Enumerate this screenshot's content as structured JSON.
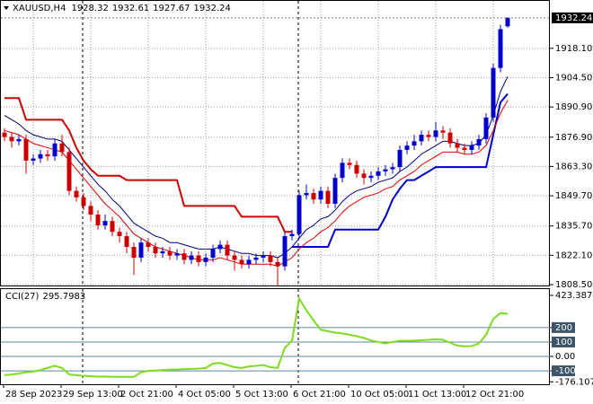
{
  "chart_data": [
    {
      "type": "candlestick",
      "title": "XAUUSD,H4",
      "xticks": [
        {
          "value": 0,
          "label": "28 Sep 2023"
        },
        {
          "value": 8,
          "label": "29 Sep 13:00"
        },
        {
          "value": 16,
          "label": "2 Oct 21:00"
        },
        {
          "value": 24,
          "label": "4 Oct 05:00"
        },
        {
          "value": 32,
          "label": "5 Oct 13:00"
        },
        {
          "value": 40,
          "label": "6 Oct 21:00"
        },
        {
          "value": 48,
          "label": "10 Oct 05:00"
        },
        {
          "value": 56,
          "label": "11 Oct 13:00"
        },
        {
          "value": 64,
          "label": "12 Oct 21:00"
        }
      ],
      "open": [
        1879,
        1877,
        1875,
        1876,
        1866,
        1867,
        1869,
        1868,
        1874,
        1870,
        1852,
        1849,
        1845,
        1841,
        1836,
        1838,
        1833,
        1831,
        1826,
        1821,
        1828,
        1826,
        1823,
        1824,
        1822,
        1823,
        1820,
        1822,
        1819,
        1821,
        1825,
        1827,
        1822,
        1820,
        1818,
        1820,
        1821,
        1822,
        1819,
        1817,
        1831,
        1832,
        1850,
        1851,
        1848,
        1852,
        1846,
        1858,
        1865,
        1864,
        1860,
        1858,
        1859,
        1861,
        1862,
        1863,
        1871,
        1873,
        1875,
        1878,
        1877,
        1880,
        1879,
        1874,
        1872,
        1871,
        1873,
        1876,
        1886,
        1909,
        1928.32
      ],
      "high": [
        1881,
        1879,
        1878,
        1878,
        1869,
        1871,
        1871,
        1876,
        1878,
        1872,
        1854,
        1851,
        1847,
        1843,
        1841,
        1840,
        1835,
        1833,
        1828,
        1830,
        1830,
        1828,
        1826,
        1826,
        1825,
        1825,
        1824,
        1824,
        1823,
        1827,
        1829,
        1829,
        1824,
        1822,
        1822,
        1823,
        1824,
        1824,
        1821,
        1833,
        1834,
        1852,
        1855,
        1853,
        1854,
        1854,
        1860,
        1867,
        1867,
        1866,
        1862,
        1861,
        1863,
        1864,
        1865,
        1873,
        1875,
        1878,
        1880,
        1880,
        1884,
        1882,
        1881,
        1876,
        1874,
        1875,
        1878,
        1888,
        1911,
        1929,
        1932.61
      ],
      "low": [
        1875,
        1872,
        1873,
        1860,
        1864,
        1865,
        1866,
        1866,
        1868,
        1850,
        1847,
        1843,
        1838,
        1834,
        1834,
        1831,
        1828,
        1823,
        1813,
        1819,
        1824,
        1821,
        1821,
        1820,
        1820,
        1818,
        1818,
        1817,
        1817,
        1819,
        1823,
        1820,
        1815,
        1816,
        1816,
        1818,
        1819,
        1817,
        1808,
        1815,
        1829,
        1830,
        1848,
        1846,
        1846,
        1844,
        1844,
        1856,
        1862,
        1858,
        1855,
        1856,
        1857,
        1859,
        1860,
        1861,
        1869,
        1871,
        1873,
        1875,
        1875,
        1876,
        1872,
        1870,
        1869,
        1869,
        1871,
        1874,
        1884,
        1907,
        1927.67
      ],
      "close": [
        1877,
        1875,
        1876,
        1866,
        1867,
        1869,
        1868,
        1874,
        1870,
        1852,
        1849,
        1845,
        1841,
        1836,
        1838,
        1833,
        1831,
        1826,
        1821,
        1828,
        1826,
        1823,
        1824,
        1822,
        1823,
        1820,
        1822,
        1819,
        1821,
        1825,
        1827,
        1822,
        1820,
        1818,
        1820,
        1821,
        1822,
        1819,
        1817,
        1831,
        1832,
        1850,
        1851,
        1848,
        1852,
        1846,
        1858,
        1865,
        1864,
        1860,
        1858,
        1859,
        1861,
        1862,
        1863,
        1871,
        1873,
        1875,
        1878,
        1877,
        1880,
        1879,
        1874,
        1872,
        1871,
        1873,
        1876,
        1886,
        1909,
        1927,
        1932.24
      ],
      "up_color": "#0000cc",
      "down_color": "#cc0000",
      "ylim": [
        1808.1,
        1940.1
      ],
      "yticks": [
        {
          "value": 1918.1,
          "label": "1918.10"
        },
        {
          "value": 1904.5,
          "label": "1904.50"
        },
        {
          "value": 1890.9,
          "label": "1890.90"
        },
        {
          "value": 1876.9,
          "label": "1876.90"
        },
        {
          "value": 1863.3,
          "label": "1863.30"
        },
        {
          "value": 1849.7,
          "label": "1849.70"
        },
        {
          "value": 1835.7,
          "label": "1835.70"
        },
        {
          "value": 1822.1,
          "label": "1822.10"
        },
        {
          "value": 1808.5,
          "label": "1808.50"
        }
      ],
      "grid": true,
      "series": [
        {
          "color": "#cc0000",
          "width": 2,
          "values": [
            1895,
            1895,
            1895,
            1885,
            1885,
            1885,
            1885,
            1885,
            1885,
            1880,
            1872,
            1866,
            1862,
            1859,
            1859,
            1859,
            1859,
            1857,
            1857,
            1857,
            1857,
            1857,
            1857,
            1857,
            1857,
            1845,
            1845,
            1845,
            1845,
            1845,
            1845,
            1845,
            1845,
            1840,
            1840,
            1840,
            1840,
            1840,
            1840,
            1833,
            1833,
            null,
            null,
            null,
            null,
            null,
            null,
            null,
            null,
            null,
            null,
            null,
            null,
            null,
            null,
            null,
            null,
            null,
            null,
            null,
            null,
            null,
            null,
            null,
            null,
            null,
            null,
            null,
            null,
            null,
            null
          ]
        },
        {
          "color": "#0000cc",
          "width": 2,
          "values": [
            null,
            null,
            null,
            null,
            null,
            null,
            null,
            null,
            null,
            null,
            null,
            null,
            null,
            null,
            null,
            null,
            null,
            null,
            null,
            null,
            null,
            null,
            null,
            null,
            null,
            null,
            null,
            null,
            null,
            null,
            null,
            null,
            null,
            null,
            null,
            null,
            null,
            null,
            null,
            null,
            1826,
            1826,
            1826,
            1826,
            1826,
            1826,
            1834,
            1834,
            1834,
            1834,
            1834,
            1834,
            1834,
            1840,
            1848,
            1853,
            1857,
            1857,
            1859,
            1861,
            1863,
            1863,
            1863,
            1863,
            1863,
            1863,
            1863,
            1863,
            1878,
            1893,
            1897
          ]
        },
        {
          "color": "#000080",
          "width": 1,
          "values": [
            1887,
            1885,
            1883,
            1880,
            1878,
            1877,
            1876,
            1876,
            1875,
            1871,
            1867,
            1863,
            1859,
            1855,
            1852,
            1848,
            1845,
            1841,
            1837,
            1835,
            1833,
            1831,
            1830,
            1828,
            1828,
            1827,
            1826,
            1825,
            1825,
            1825,
            1826,
            1825,
            1824,
            1823,
            1823,
            1822,
            1822,
            1822,
            1821,
            1823,
            1826,
            1830,
            1834,
            1836,
            1839,
            1840,
            1843,
            1847,
            1850,
            1852,
            1853,
            1854,
            1856,
            1857,
            1858,
            1861,
            1863,
            1866,
            1869,
            1871,
            1873,
            1875,
            1875,
            1874,
            1873,
            1873,
            1874,
            1878,
            1887,
            1898,
            1905
          ]
        },
        {
          "color": "#e00000",
          "width": 1,
          "values": [
            1880,
            1879,
            1878,
            1876,
            1874,
            1873,
            1872,
            1871,
            1870,
            1866,
            1862,
            1858,
            1854,
            1850,
            1846,
            1843,
            1840,
            1836,
            1832,
            1830,
            1828,
            1826,
            1825,
            1824,
            1823,
            1822,
            1821,
            1820,
            1820,
            1820,
            1821,
            1820,
            1819,
            1818,
            1818,
            1818,
            1818,
            1818,
            1817,
            1819,
            1821,
            1825,
            1828,
            1830,
            1833,
            1835,
            1838,
            1842,
            1845,
            1847,
            1849,
            1850,
            1851,
            1853,
            1854,
            1857,
            1859,
            1861,
            1864,
            1866,
            1868,
            1870,
            1870,
            1870,
            1869,
            1869,
            1870,
            1873,
            1880,
            1888,
            1894
          ]
        }
      ]
    },
    {
      "type": "line",
      "title": "CCI(27)",
      "ylim": [
        -193,
        467
      ],
      "yticks": [
        423.3874,
        200,
        100,
        {
          "value": 0,
          "label": "0.00"
        },
        -100,
        -176.1073
      ],
      "series": [
        {
          "color": "#7ddc1f",
          "width": 2,
          "values": [
            -130,
            -125,
            -118,
            -110,
            -105,
            -95,
            -80,
            -65,
            -80,
            -125,
            -130,
            -135,
            -138,
            -140,
            -140,
            -141,
            -142,
            -142,
            -142,
            -110,
            -100,
            -98,
            -95,
            -92,
            -90,
            -88,
            -86,
            -85,
            -80,
            -50,
            -45,
            -60,
            -75,
            -80,
            -70,
            -65,
            -60,
            -75,
            -80,
            60,
            110,
            400,
            320,
            250,
            185,
            175,
            165,
            160,
            150,
            140,
            128,
            110,
            100,
            90,
            100,
            108,
            108,
            110,
            112,
            115,
            118,
            115,
            95,
            75,
            70,
            72,
            90,
            150,
            260,
            300,
            295.7983
          ]
        }
      ]
    }
  ]
}
